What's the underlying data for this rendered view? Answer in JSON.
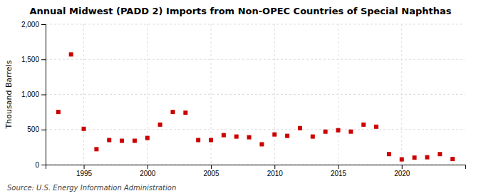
{
  "chart_data": {
    "type": "scatter",
    "title": "Annual Midwest (PADD 2) Imports from Non-OPEC Countries of Special Naphthas",
    "ylabel": "Thousand Barrels",
    "source": "Source: U.S. Energy Information Administration",
    "x": [
      1993,
      1994,
      1995,
      1996,
      1997,
      1998,
      1999,
      2000,
      2001,
      2002,
      2003,
      2004,
      2005,
      2006,
      2007,
      2008,
      2009,
      2010,
      2011,
      2012,
      2013,
      2014,
      2015,
      2016,
      2017,
      2018,
      2019,
      2020,
      2021,
      2022,
      2023,
      2024
    ],
    "values": [
      750,
      1570,
      510,
      220,
      350,
      340,
      340,
      380,
      570,
      750,
      740,
      350,
      350,
      420,
      400,
      390,
      290,
      430,
      410,
      520,
      400,
      470,
      490,
      470,
      570,
      540,
      150,
      75,
      100,
      105,
      150,
      80
    ],
    "color": "#cc0000",
    "marker": "square",
    "xlim": [
      1992,
      2025
    ],
    "xticks": [
      1995,
      2000,
      2005,
      2010,
      2015,
      2020
    ],
    "ylim": [
      0,
      2000
    ],
    "yticks": [
      0,
      500,
      {
        "value": 1000,
        "label": "1,000"
      },
      {
        "value": 1500,
        "label": "1,500"
      },
      {
        "value": 2000,
        "label": "2,000"
      }
    ],
    "grid": true
  }
}
